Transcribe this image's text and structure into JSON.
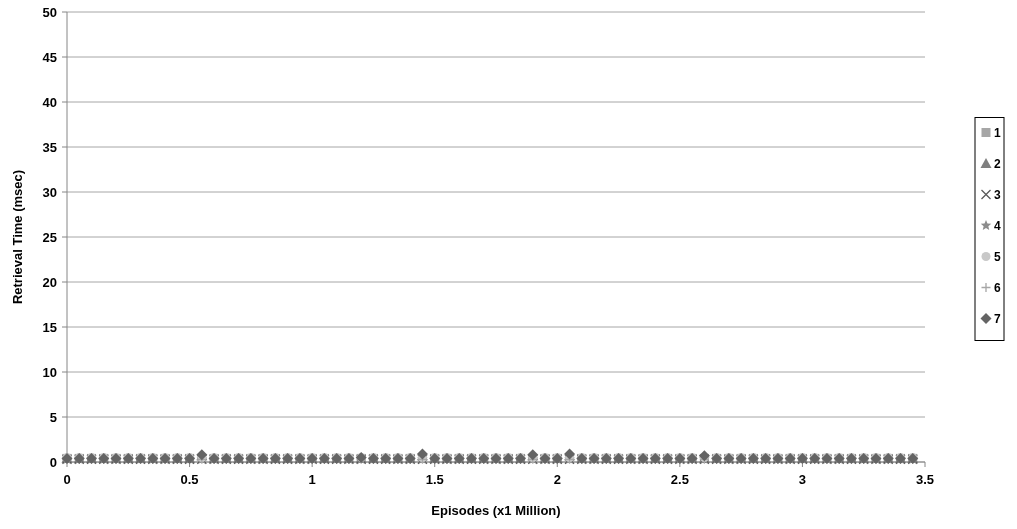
{
  "chart_data": {
    "type": "scatter",
    "xlabel": "Episodes (x1 Million)",
    "ylabel": "Retrieval Time (msec)",
    "x": [
      0,
      0.05,
      0.1,
      0.15,
      0.2,
      0.25,
      0.3,
      0.35,
      0.4,
      0.45,
      0.5,
      0.55,
      0.6,
      0.65,
      0.7,
      0.75,
      0.8,
      0.85,
      0.9,
      0.95,
      1,
      1.05,
      1.1,
      1.15,
      1.2,
      1.25,
      1.3,
      1.35,
      1.4,
      1.45,
      1.5,
      1.55,
      1.6,
      1.65,
      1.7,
      1.75,
      1.8,
      1.85,
      1.9,
      1.95,
      2,
      2.05,
      2.1,
      2.15,
      2.2,
      2.25,
      2.3,
      2.35,
      2.4,
      2.45,
      2.5,
      2.55,
      2.6,
      2.65,
      2.7,
      2.75,
      2.8,
      2.85,
      2.9,
      2.95,
      3,
      3.05,
      3.1,
      3.15,
      3.2,
      3.25,
      3.3,
      3.35,
      3.4,
      3.45
    ],
    "xlim": [
      0,
      3.5
    ],
    "xticks": [
      0,
      0.5,
      1,
      1.5,
      2,
      2.5,
      3,
      3.5
    ],
    "ylim": [
      0,
      50
    ],
    "yticks": [
      0,
      5,
      10,
      15,
      20,
      25,
      30,
      35,
      40,
      45,
      50
    ],
    "grid": "y",
    "legend": "right",
    "series": [
      {
        "name": "1",
        "color": "#a6a6a6",
        "marker": "square",
        "values": [
          0.4,
          0.4,
          0.4,
          0.4,
          0.4,
          0.4,
          0.4,
          0.4,
          0.4,
          0.4,
          0.4,
          0.4,
          0.4,
          0.4,
          0.4,
          0.4,
          0.4,
          0.4,
          0.4,
          0.4,
          0.4,
          0.4,
          0.4,
          0.4,
          0.4,
          0.4,
          0.4,
          0.4,
          0.4,
          0.4,
          0.4,
          0.4,
          0.4,
          0.4,
          0.4,
          0.4,
          0.4,
          0.4,
          0.4,
          0.4,
          0.4,
          0.4,
          0.4,
          0.4,
          0.4,
          0.4,
          0.4,
          0.4,
          0.4,
          0.4,
          0.4,
          0.4,
          0.4,
          0.4,
          0.4,
          0.4,
          0.4,
          0.4,
          0.4,
          0.4,
          0.4,
          0.4,
          0.4,
          0.4,
          0.4,
          0.4,
          0.4,
          0.4,
          0.4,
          0.4
        ]
      },
      {
        "name": "2",
        "color": "#7f7f7f",
        "marker": "triangle",
        "values": [
          0.4,
          0.4,
          0.4,
          0.4,
          0.4,
          0.4,
          0.4,
          0.4,
          0.4,
          0.4,
          0.4,
          0.7,
          0.4,
          0.4,
          0.4,
          0.4,
          0.4,
          0.4,
          0.4,
          0.4,
          0.4,
          0.4,
          0.4,
          0.4,
          0.4,
          0.4,
          0.4,
          0.4,
          0.4,
          0.7,
          0.4,
          0.4,
          0.4,
          0.4,
          0.4,
          0.4,
          0.4,
          0.4,
          0.7,
          0.4,
          0.4,
          0.7,
          0.4,
          0.4,
          0.4,
          0.4,
          0.4,
          0.4,
          0.4,
          0.4,
          0.4,
          0.4,
          0.4,
          0.4,
          0.4,
          0.4,
          0.4,
          0.4,
          0.4,
          0.4,
          0.4,
          0.4,
          0.4,
          0.4,
          0.4,
          0.4,
          0.4,
          0.4,
          0.4,
          0.4
        ]
      },
      {
        "name": "3",
        "color": "#595959",
        "marker": "cross",
        "values": [
          0.3,
          0.3,
          0.3,
          0.3,
          0.3,
          0.3,
          0.3,
          0.3,
          0.3,
          0.3,
          0.3,
          0.3,
          0.3,
          0.3,
          0.3,
          0.3,
          0.3,
          0.3,
          0.3,
          0.3,
          0.3,
          0.3,
          0.3,
          0.3,
          0.3,
          0.3,
          0.3,
          0.3,
          0.3,
          0.3,
          0.3,
          0.3,
          0.3,
          0.3,
          0.3,
          0.3,
          0.3,
          0.3,
          0.3,
          0.3,
          0.3,
          0.3,
          0.3,
          0.3,
          0.3,
          0.3,
          0.3,
          0.3,
          0.3,
          0.3,
          0.3,
          0.3,
          0.3,
          0.3,
          0.3,
          0.3,
          0.3,
          0.3,
          0.3,
          0.3,
          0.3,
          0.3,
          0.3,
          0.3,
          0.3,
          0.3,
          0.3,
          0.3,
          0.3,
          0.3
        ]
      },
      {
        "name": "4",
        "color": "#8c8c8c",
        "marker": "star",
        "values": [
          0.3,
          0.3,
          0.3,
          0.3,
          0.3,
          0.3,
          0.3,
          0.3,
          0.3,
          0.3,
          0.3,
          0.3,
          0.3,
          0.3,
          0.3,
          0.3,
          0.3,
          0.3,
          0.3,
          0.3,
          0.3,
          0.3,
          0.3,
          0.3,
          0.3,
          0.3,
          0.3,
          0.3,
          0.3,
          0.3,
          0.3,
          0.3,
          0.3,
          0.3,
          0.3,
          0.3,
          0.3,
          0.3,
          0.3,
          0.3,
          0.3,
          0.3,
          0.3,
          0.3,
          0.3,
          0.3,
          0.3,
          0.3,
          0.3,
          0.3,
          0.3,
          0.3,
          0.3,
          0.3,
          0.3,
          0.3,
          0.3,
          0.3,
          0.3,
          0.3,
          0.3,
          0.3,
          0.3,
          0.3,
          0.3,
          0.3,
          0.3,
          0.3,
          0.3,
          0.3
        ]
      },
      {
        "name": "5",
        "color": "#c8c8c8",
        "marker": "circle",
        "values": [
          0.5,
          0.5,
          0.5,
          0.5,
          0.5,
          0.5,
          0.5,
          0.5,
          0.5,
          0.5,
          0.5,
          0.5,
          0.5,
          0.5,
          0.5,
          0.5,
          0.5,
          0.5,
          0.5,
          0.5,
          0.5,
          0.5,
          0.5,
          0.5,
          0.5,
          0.5,
          0.5,
          0.5,
          0.5,
          0.5,
          0.5,
          0.5,
          0.5,
          0.5,
          0.5,
          0.5,
          0.5,
          0.5,
          0.5,
          0.5,
          0.5,
          0.5,
          0.5,
          0.5,
          0.5,
          0.5,
          0.5,
          0.5,
          0.5,
          0.5,
          0.5,
          0.5,
          0.5,
          0.5,
          0.5,
          0.5,
          0.5,
          0.5,
          0.5,
          0.5,
          0.5,
          0.5,
          0.5,
          0.5,
          0.5,
          0.5,
          0.5,
          0.5,
          0.5,
          0.5
        ]
      },
      {
        "name": "6",
        "color": "#a6a6a6",
        "marker": "plus",
        "values": [
          0.3,
          0.3,
          0.3,
          0.3,
          0.3,
          0.3,
          0.3,
          0.3,
          0.3,
          0.3,
          0.3,
          0.3,
          0.3,
          0.3,
          0.3,
          0.3,
          0.3,
          0.3,
          0.3,
          0.3,
          0.3,
          0.3,
          0.3,
          0.3,
          0.3,
          0.3,
          0.3,
          0.3,
          0.3,
          0.3,
          0.3,
          0.3,
          0.3,
          0.3,
          0.3,
          0.3,
          0.3,
          0.3,
          0.3,
          0.3,
          0.3,
          0.3,
          0.3,
          0.3,
          0.3,
          0.3,
          0.3,
          0.3,
          0.3,
          0.3,
          0.3,
          0.3,
          0.3,
          0.3,
          0.3,
          0.3,
          0.3,
          0.3,
          0.3,
          0.3,
          0.3,
          0.3,
          0.3,
          0.3,
          0.3,
          0.3,
          0.3,
          0.3,
          0.3,
          0.3
        ]
      },
      {
        "name": "7",
        "color": "#646464",
        "marker": "diamond",
        "values": [
          0.4,
          0.4,
          0.4,
          0.4,
          0.4,
          0.4,
          0.4,
          0.4,
          0.4,
          0.4,
          0.4,
          0.8,
          0.4,
          0.4,
          0.4,
          0.4,
          0.4,
          0.4,
          0.4,
          0.4,
          0.4,
          0.4,
          0.4,
          0.4,
          0.5,
          0.4,
          0.4,
          0.4,
          0.4,
          0.9,
          0.4,
          0.4,
          0.4,
          0.4,
          0.4,
          0.4,
          0.4,
          0.4,
          0.8,
          0.4,
          0.4,
          0.9,
          0.4,
          0.4,
          0.4,
          0.4,
          0.4,
          0.4,
          0.4,
          0.4,
          0.4,
          0.4,
          0.7,
          0.4,
          0.4,
          0.4,
          0.4,
          0.4,
          0.4,
          0.4,
          0.4,
          0.4,
          0.4,
          0.4,
          0.4,
          0.4,
          0.4,
          0.4,
          0.4,
          0.4
        ]
      }
    ]
  }
}
